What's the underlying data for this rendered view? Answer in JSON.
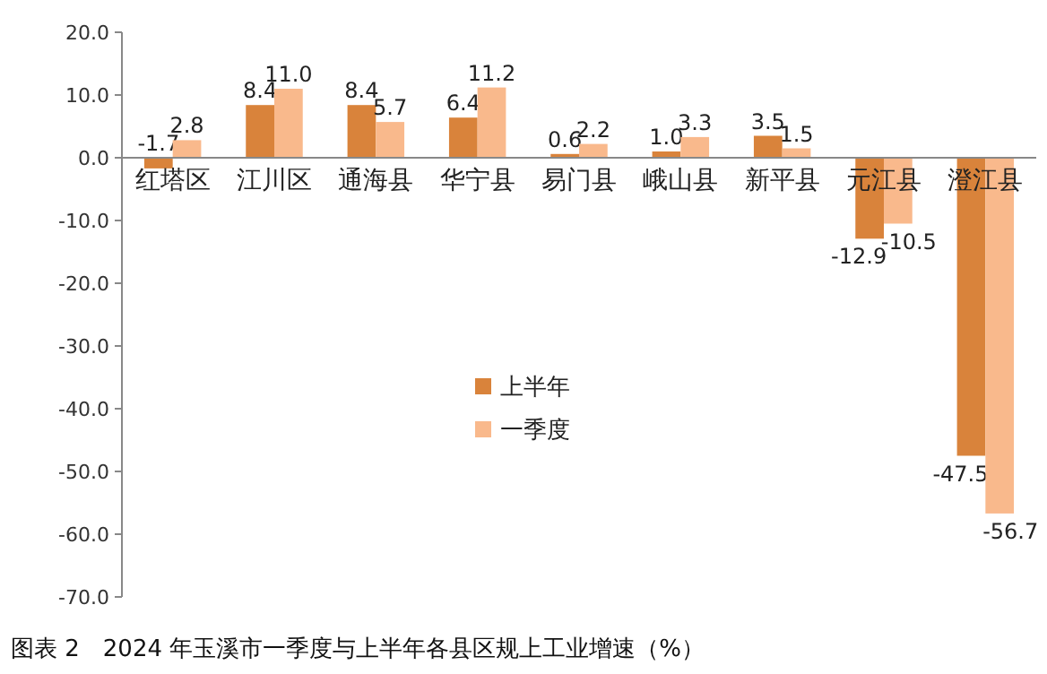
{
  "chart_data": {
    "type": "bar",
    "title": "图表 2　2024 年玉溪市一季度与上半年各县区规上工业增速（%）",
    "categories": [
      "红塔区",
      "江川区",
      "通海县",
      "华宁县",
      "易门县",
      "峨山县",
      "新平县",
      "元江县",
      "澄江县"
    ],
    "series": [
      {
        "name": "上半年",
        "color": "#d9833b",
        "values": [
          -1.7,
          8.4,
          8.4,
          6.4,
          0.6,
          1.0,
          3.5,
          -12.9,
          -47.5
        ],
        "value_labels": [
          "-1.7",
          "8.4",
          "8.4",
          "6.4",
          "0.6",
          "1.0",
          "3.5",
          "-12.9",
          "-47.5"
        ]
      },
      {
        "name": "一季度",
        "color": "#f9b98c",
        "values": [
          2.8,
          11.0,
          5.7,
          11.2,
          2.2,
          3.3,
          1.5,
          -10.5,
          -56.7
        ],
        "value_labels": [
          "2.8",
          "11.0",
          "5.7",
          "11.2",
          "2.2",
          "3.3",
          "1.5",
          "-10.5",
          "-56.7"
        ]
      }
    ],
    "ylim": [
      -70,
      20
    ],
    "yticks": [
      {
        "value": -70,
        "label": "-70.0"
      },
      {
        "value": -60,
        "label": "-60.0"
      },
      {
        "value": -50,
        "label": "-50.0"
      },
      {
        "value": -40,
        "label": "-40.0"
      },
      {
        "value": -30,
        "label": "-30.0"
      },
      {
        "value": -20,
        "label": "-20.0"
      },
      {
        "value": -10,
        "label": "-10.0"
      },
      {
        "value": 0,
        "label": "0.0"
      },
      {
        "value": 10,
        "label": "10.0"
      },
      {
        "value": 20,
        "label": "20.0"
      }
    ],
    "grid": false,
    "legend": "center"
  }
}
